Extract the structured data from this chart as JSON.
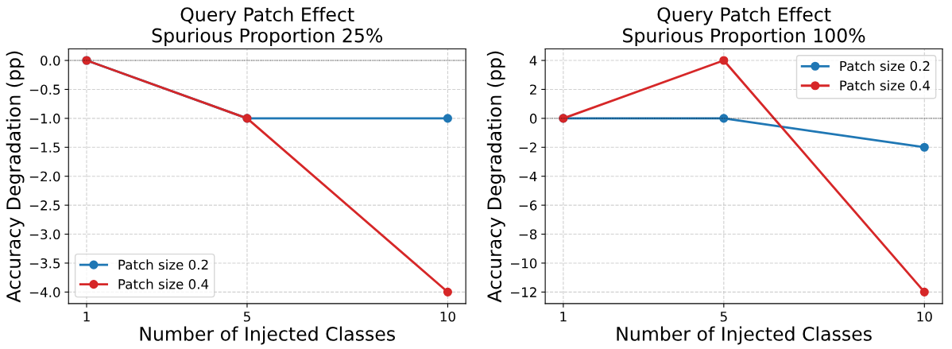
{
  "chart_data": [
    {
      "type": "line",
      "title": "Query Patch Effect\nSpurious Proportion 25%",
      "xlabel": "Number of Injected Classes",
      "ylabel": "Accuracy Degradation (pp)",
      "x": [
        1,
        5,
        10
      ],
      "xlim": [
        0.55,
        10.45
      ],
      "xticks": [
        1,
        5,
        10
      ],
      "ylim": [
        -4.2,
        0.2
      ],
      "yticks": [
        {
          "value": -4,
          "label": "−4.0"
        },
        {
          "value": -3.5,
          "label": "−3.5"
        },
        {
          "value": -3,
          "label": "−3.0"
        },
        {
          "value": -2.5,
          "label": "−2.5"
        },
        {
          "value": -2,
          "label": "−2.0"
        },
        {
          "value": -1.5,
          "label": "−1.5"
        },
        {
          "value": -1,
          "label": "−1.0"
        },
        {
          "value": -0.5,
          "label": "−0.5"
        },
        {
          "value": 0,
          "label": "0.0"
        }
      ],
      "grid": true,
      "legend": "bottom left",
      "marker": "circle",
      "line_style": "solid",
      "ref_lines": [
        {
          "axis": "y",
          "value": 0,
          "color": "#000000",
          "line_style": "dotted"
        }
      ],
      "series": [
        {
          "name": "Patch size 0.2",
          "color": "#1f77b4",
          "values": [
            0,
            -1,
            -1
          ]
        },
        {
          "name": "Patch size 0.4",
          "color": "#d62728",
          "values": [
            0,
            -1,
            -4
          ]
        }
      ]
    },
    {
      "type": "line",
      "title": "Query Patch Effect\nSpurious Proportion 100%",
      "xlabel": "Number of Injected Classes",
      "ylabel": "Accuracy Degradation (pp)",
      "x": [
        1,
        5,
        10
      ],
      "xlim": [
        0.55,
        10.45
      ],
      "xticks": [
        1,
        5,
        10
      ],
      "ylim": [
        -12.8,
        4.8
      ],
      "yticks": [
        {
          "value": -12,
          "label": "−12"
        },
        {
          "value": -10,
          "label": "−10"
        },
        {
          "value": -8,
          "label": "−8"
        },
        {
          "value": -6,
          "label": "−6"
        },
        {
          "value": -4,
          "label": "−4"
        },
        {
          "value": -2,
          "label": "−2"
        },
        0,
        2,
        4
      ],
      "grid": true,
      "legend": "top right",
      "marker": "circle",
      "line_style": "solid",
      "ref_lines": [
        {
          "axis": "y",
          "value": 0,
          "color": "#000000",
          "line_style": "dotted"
        }
      ],
      "series": [
        {
          "name": "Patch size 0.2",
          "color": "#1f77b4",
          "values": [
            0,
            0,
            -2
          ]
        },
        {
          "name": "Patch size 0.4",
          "color": "#d62728",
          "values": [
            0,
            4,
            -12
          ]
        }
      ]
    }
  ]
}
